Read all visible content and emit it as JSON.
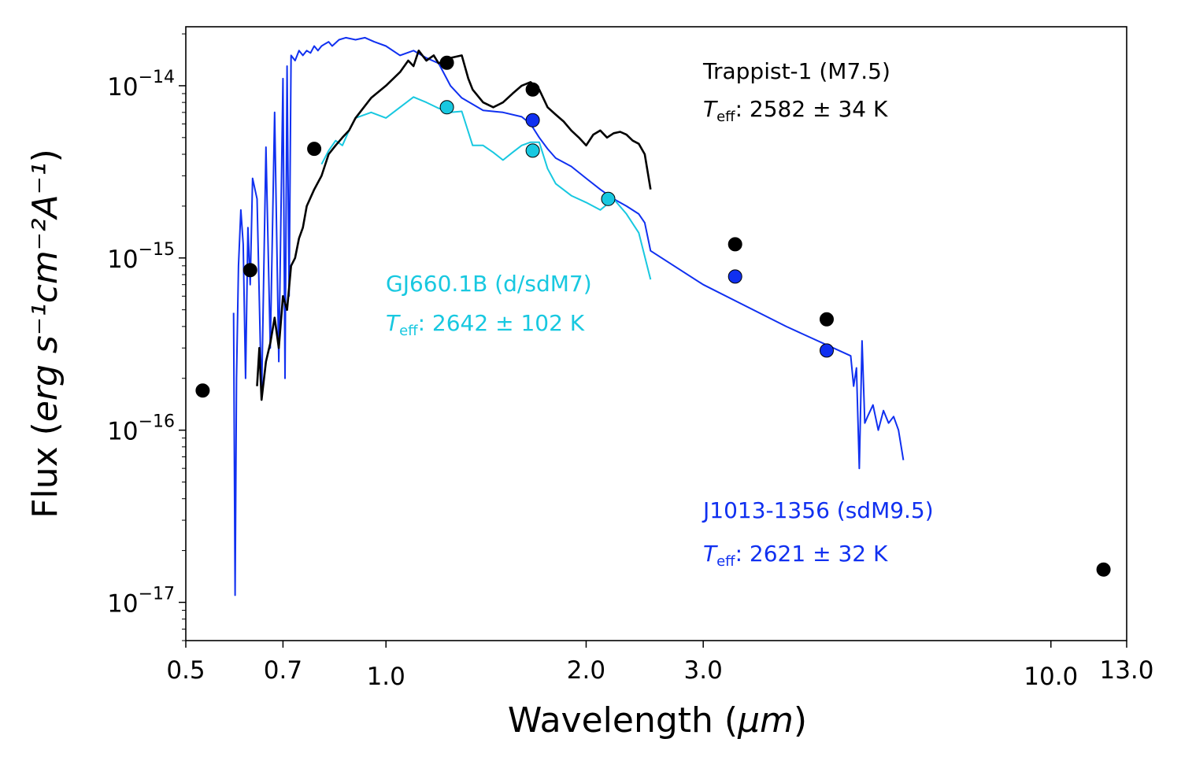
{
  "chart_data": {
    "type": "line",
    "xscale": "log",
    "yscale": "log",
    "xlim": [
      0.5,
      13.0
    ],
    "ylim": [
      6e-18,
      2.2e-14
    ],
    "xlabel_prefix": "Wavelength (",
    "xlabel_unit": "μm",
    "xlabel_suffix": ")",
    "ylabel_prefix": "Flux  (",
    "ylabel_units": "erg s⁻¹cm⁻²A⁻¹",
    "ylabel_suffix": ")",
    "x_ticks": [
      {
        "value": 0.5,
        "label": "0.5"
      },
      {
        "value": 0.7,
        "label": "0.7"
      },
      {
        "value": 1.0,
        "label": "1.0"
      },
      {
        "value": 2.0,
        "label": "2.0"
      },
      {
        "value": 3.0,
        "label": "3.0"
      },
      {
        "value": 10.0,
        "label": "10.0"
      },
      {
        "value": 13.0,
        "label": "13.0"
      }
    ],
    "y_ticks": [
      {
        "value": 1e-14,
        "base": "10",
        "exp": "−14"
      },
      {
        "value": 1e-15,
        "base": "10",
        "exp": "−15"
      },
      {
        "value": 1e-16,
        "base": "10",
        "exp": "−16"
      },
      {
        "value": 1e-17,
        "base": "10",
        "exp": "−17"
      }
    ],
    "colors": {
      "trappist": "#000000",
      "gj660": "#18c8e0",
      "j1013": "#1030f0"
    },
    "annotations": {
      "trappist_name": "Trappist-1 (M7.5)",
      "trappist_teff_sym": "T",
      "trappist_teff_sub": "eff",
      "trappist_teff_val": ": 2582 ± 34 K",
      "gj660_name": "GJ660.1B (d/sdM7)",
      "gj660_teff_sym": "T",
      "gj660_teff_sub": "eff",
      "gj660_teff_val": ": 2642 ± 102 K",
      "j1013_name": "J1013-1356 (sdM9.5)",
      "j1013_teff_sym": "T",
      "j1013_teff_sub": "eff",
      "j1013_teff_val": ": 2621 ± 32 K"
    },
    "series": [
      {
        "name": "J1013-1356 (sdM9.5)",
        "color": "#1030f0",
        "kind": "model",
        "x": [
          0.59,
          0.593,
          0.596,
          0.6,
          0.605,
          0.61,
          0.615,
          0.62,
          0.625,
          0.63,
          0.64,
          0.65,
          0.66,
          0.67,
          0.68,
          0.69,
          0.7,
          0.705,
          0.71,
          0.715,
          0.72,
          0.73,
          0.74,
          0.75,
          0.76,
          0.77,
          0.78,
          0.79,
          0.8,
          0.81,
          0.82,
          0.83,
          0.85,
          0.87,
          0.9,
          0.93,
          0.96,
          1.0,
          1.05,
          1.1,
          1.15,
          1.2,
          1.25,
          1.3,
          1.4,
          1.5,
          1.6,
          1.65,
          1.7,
          1.75,
          1.8,
          1.9,
          2.0,
          2.1,
          2.2,
          2.3,
          2.4,
          2.45,
          2.5,
          3.0,
          4.0,
          5.0,
          5.05,
          5.1,
          5.15,
          5.2,
          5.25,
          5.3,
          5.4,
          5.5,
          5.6,
          5.7,
          5.8,
          5.9,
          6.0
        ],
        "y": [
          4.8e-16,
          1.1e-17,
          2e-16,
          9e-16,
          1.9e-15,
          1.2e-15,
          2e-16,
          1.5e-15,
          7e-16,
          2.9e-15,
          2.2e-15,
          1.5e-16,
          4.4e-15,
          3e-16,
          7e-15,
          2.5e-16,
          1.1e-14,
          2e-16,
          1.3e-14,
          6e-16,
          1.5e-14,
          1.4e-14,
          1.6e-14,
          1.5e-14,
          1.6e-14,
          1.55e-14,
          1.7e-14,
          1.6e-14,
          1.7e-14,
          1.75e-14,
          1.8e-14,
          1.7e-14,
          1.85e-14,
          1.9e-14,
          1.85e-14,
          1.9e-14,
          1.8e-14,
          1.7e-14,
          1.5e-14,
          1.6e-14,
          1.45e-14,
          1.35e-14,
          1e-14,
          8.5e-15,
          7.2e-15,
          7e-15,
          6.6e-15,
          6e-15,
          5e-15,
          4.3e-15,
          3.8e-15,
          3.4e-15,
          2.9e-15,
          2.5e-15,
          2.2e-15,
          2e-15,
          1.8e-15,
          1.6e-15,
          1.1e-15,
          7e-16,
          4e-16,
          2.7e-16,
          1.8e-16,
          2.3e-16,
          6e-17,
          3.3e-16,
          1.1e-16,
          1.2e-16,
          1.4e-16,
          1e-16,
          1.3e-16,
          1.1e-16,
          1.2e-16,
          1e-16,
          6.7e-17
        ]
      },
      {
        "name": "GJ660.1B (d/sdM7)",
        "color": "#18c8e0",
        "kind": "model",
        "x": [
          0.8,
          0.82,
          0.84,
          0.86,
          0.88,
          0.9,
          0.95,
          1.0,
          1.05,
          1.1,
          1.15,
          1.2,
          1.25,
          1.3,
          1.35,
          1.4,
          1.45,
          1.5,
          1.55,
          1.6,
          1.65,
          1.7,
          1.75,
          1.8,
          1.9,
          2.0,
          2.1,
          2.2,
          2.3,
          2.4,
          2.5
        ],
        "y": [
          3.5e-15,
          4.2e-15,
          4.8e-15,
          4.5e-15,
          5.5e-15,
          6.5e-15,
          7e-15,
          6.5e-15,
          7.5e-15,
          8.6e-15,
          8e-15,
          7.4e-15,
          7e-15,
          7.1e-15,
          4.5e-15,
          4.5e-15,
          4.1e-15,
          3.7e-15,
          4.1e-15,
          4.5e-15,
          4.7e-15,
          4.7e-15,
          3.3e-15,
          2.7e-15,
          2.3e-15,
          2.1e-15,
          1.9e-15,
          2.2e-15,
          1.8e-15,
          1.4e-15,
          7.5e-16
        ]
      },
      {
        "name": "Trappist-1 (M7.5)",
        "color": "#000000",
        "kind": "spectrum",
        "x": [
          0.64,
          0.645,
          0.65,
          0.66,
          0.67,
          0.68,
          0.69,
          0.7,
          0.71,
          0.72,
          0.73,
          0.74,
          0.75,
          0.76,
          0.78,
          0.8,
          0.82,
          0.84,
          0.86,
          0.88,
          0.9,
          0.95,
          1.0,
          1.05,
          1.08,
          1.1,
          1.12,
          1.15,
          1.18,
          1.2,
          1.25,
          1.3,
          1.33,
          1.35,
          1.4,
          1.45,
          1.5,
          1.55,
          1.6,
          1.65,
          1.7,
          1.75,
          1.8,
          1.85,
          1.9,
          1.95,
          2.0,
          2.05,
          2.1,
          2.15,
          2.2,
          2.25,
          2.3,
          2.35,
          2.4,
          2.45,
          2.5
        ],
        "y": [
          1.8e-16,
          3e-16,
          1.5e-16,
          2.5e-16,
          3.2e-16,
          4.5e-16,
          3e-16,
          6e-16,
          5e-16,
          9e-16,
          1e-15,
          1.3e-15,
          1.5e-15,
          2e-15,
          2.5e-15,
          3e-15,
          4e-15,
          4.5e-15,
          5e-15,
          5.5e-15,
          6.5e-15,
          8.5e-15,
          1e-14,
          1.2e-14,
          1.4e-14,
          1.3e-14,
          1.6e-14,
          1.4e-14,
          1.5e-14,
          1.35e-14,
          1.45e-14,
          1.5e-14,
          1.1e-14,
          9.5e-15,
          8e-15,
          7.5e-15,
          8e-15,
          9e-15,
          1e-14,
          1.05e-14,
          9.5e-15,
          7.5e-15,
          6.8e-15,
          6.2e-15,
          5.5e-15,
          5e-15,
          4.5e-15,
          5.2e-15,
          5.5e-15,
          5e-15,
          5.3e-15,
          5.4e-15,
          5.2e-15,
          4.8e-15,
          4.6e-15,
          4e-15,
          2.5e-15
        ]
      }
    ],
    "photometry": [
      {
        "name": "Trappist-1 (M7.5)",
        "fill": "#000000",
        "x": [
          0.53,
          0.625,
          0.78,
          1.235,
          1.662,
          3.35,
          4.6,
          12.0
        ],
        "y": [
          1.7e-16,
          8.5e-16,
          4.3e-15,
          1.36e-14,
          9.5e-15,
          1.2e-15,
          4.4e-16,
          1.55e-17
        ]
      },
      {
        "name": "GJ660.1B (d/sdM7)",
        "fill": "#18c8e0",
        "x": [
          1.235,
          1.662,
          2.159
        ],
        "y": [
          7.5e-15,
          4.2e-15,
          2.2e-15
        ]
      },
      {
        "name": "J1013-1356 (sdM9.5)",
        "fill": "#1030f0",
        "x": [
          1.662,
          3.35,
          4.6
        ],
        "y": [
          6.3e-15,
          7.8e-16,
          2.9e-16
        ]
      }
    ]
  }
}
